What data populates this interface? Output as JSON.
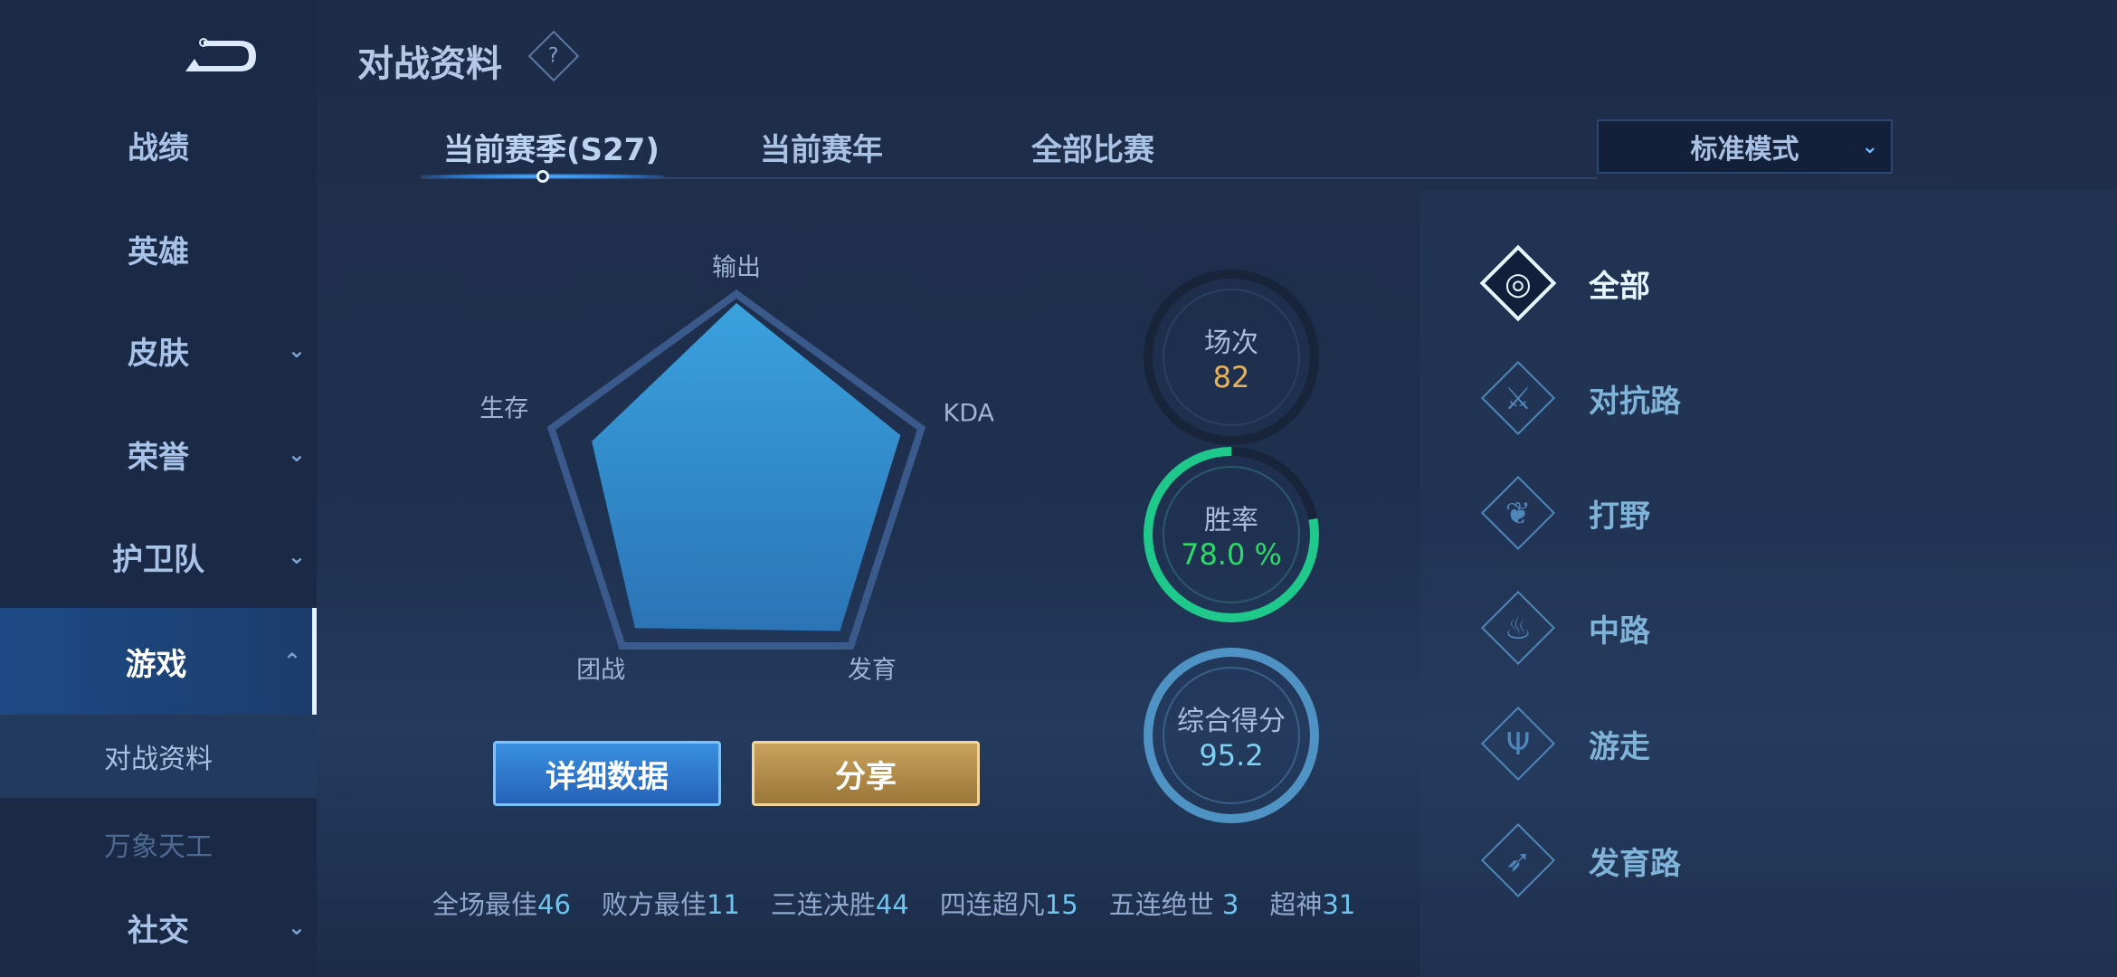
{
  "sidebar": {
    "items": [
      {
        "label": "战绩",
        "chevron": ""
      },
      {
        "label": "英雄",
        "chevron": ""
      },
      {
        "label": "皮肤",
        "chevron": "⌄"
      },
      {
        "label": "荣誉",
        "chevron": "⌄"
      },
      {
        "label": "护卫队",
        "chevron": "⌄"
      },
      {
        "label": "游戏",
        "chevron": "⌃",
        "selected": true
      },
      {
        "label": "社交",
        "chevron": "⌄"
      }
    ],
    "subitems": [
      {
        "label": "对战资料",
        "selected": true
      },
      {
        "label": "万象天工"
      }
    ]
  },
  "header": {
    "title": "对战资料",
    "help": "?"
  },
  "tabs": [
    {
      "label": "当前赛季(S27)",
      "selected": true
    },
    {
      "label": "当前赛年"
    },
    {
      "label": "全部比赛"
    }
  ],
  "mode_dropdown": {
    "value": "标准模式"
  },
  "radar": {
    "axes": [
      "输出",
      "KDA",
      "发育",
      "团战",
      "生存"
    ],
    "values": [
      1.0,
      0.93,
      0.95,
      0.93,
      0.82
    ]
  },
  "rings": {
    "matches": {
      "label": "场次",
      "value": "82",
      "color": "#e8b25a"
    },
    "winrate": {
      "label": "胜率",
      "value": "78.0 %",
      "fraction": 0.78,
      "color": "#2fd86a",
      "ring_color": "#1fc98c"
    },
    "score": {
      "label": "综合得分",
      "value": "95.2",
      "color": "#7fd0f2",
      "ring_color": "#4f93c4"
    }
  },
  "buttons": {
    "details": "详细数据",
    "share": "分享"
  },
  "stats": [
    {
      "label": "全场最佳",
      "value": "46"
    },
    {
      "label": "败方最佳",
      "value": "11"
    },
    {
      "label": "三连决胜",
      "value": "44"
    },
    {
      "label": "四连超凡",
      "value": "15"
    },
    {
      "label": "五连绝世",
      "value": " 3"
    },
    {
      "label": "超神",
      "value": "31"
    }
  ],
  "lanes": [
    {
      "label": "全部",
      "icon": "all-lanes-icon",
      "selected": true
    },
    {
      "label": "对抗路",
      "icon": "crossed-swords-icon"
    },
    {
      "label": "打野",
      "icon": "leaf-icon"
    },
    {
      "label": "中路",
      "icon": "flame-icon"
    },
    {
      "label": "游走",
      "icon": "trident-icon"
    },
    {
      "label": "发育路",
      "icon": "arrow-target-icon"
    }
  ]
}
